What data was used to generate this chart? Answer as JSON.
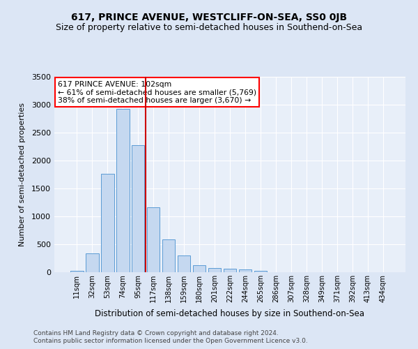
{
  "title": "617, PRINCE AVENUE, WESTCLIFF-ON-SEA, SS0 0JB",
  "subtitle": "Size of property relative to semi-detached houses in Southend-on-Sea",
  "xlabel": "Distribution of semi-detached houses by size in Southend-on-Sea",
  "ylabel": "Number of semi-detached properties",
  "categories": [
    "11sqm",
    "32sqm",
    "53sqm",
    "74sqm",
    "95sqm",
    "117sqm",
    "138sqm",
    "159sqm",
    "180sqm",
    "201sqm",
    "222sqm",
    "244sqm",
    "265sqm",
    "286sqm",
    "307sqm",
    "328sqm",
    "349sqm",
    "371sqm",
    "392sqm",
    "413sqm",
    "434sqm"
  ],
  "values": [
    30,
    340,
    1760,
    2920,
    2280,
    1160,
    590,
    300,
    130,
    70,
    60,
    55,
    30,
    0,
    0,
    0,
    0,
    0,
    0,
    0,
    0
  ],
  "bar_color": "#c5d8f0",
  "bar_edge_color": "#5b9bd5",
  "red_line_x": 4.5,
  "annotation_text": "617 PRINCE AVENUE: 102sqm\n← 61% of semi-detached houses are smaller (5,769)\n38% of semi-detached houses are larger (3,670) →",
  "annotation_box_color": "white",
  "annotation_box_edge": "red",
  "red_line_color": "#cc0000",
  "ylim": [
    0,
    3500
  ],
  "yticks": [
    0,
    500,
    1000,
    1500,
    2000,
    2500,
    3000,
    3500
  ],
  "footer1": "Contains HM Land Registry data © Crown copyright and database right 2024.",
  "footer2": "Contains public sector information licensed under the Open Government Licence v3.0.",
  "background_color": "#dce6f5",
  "plot_bg_color": "#e8eff9",
  "title_fontsize": 10,
  "subtitle_fontsize": 9
}
